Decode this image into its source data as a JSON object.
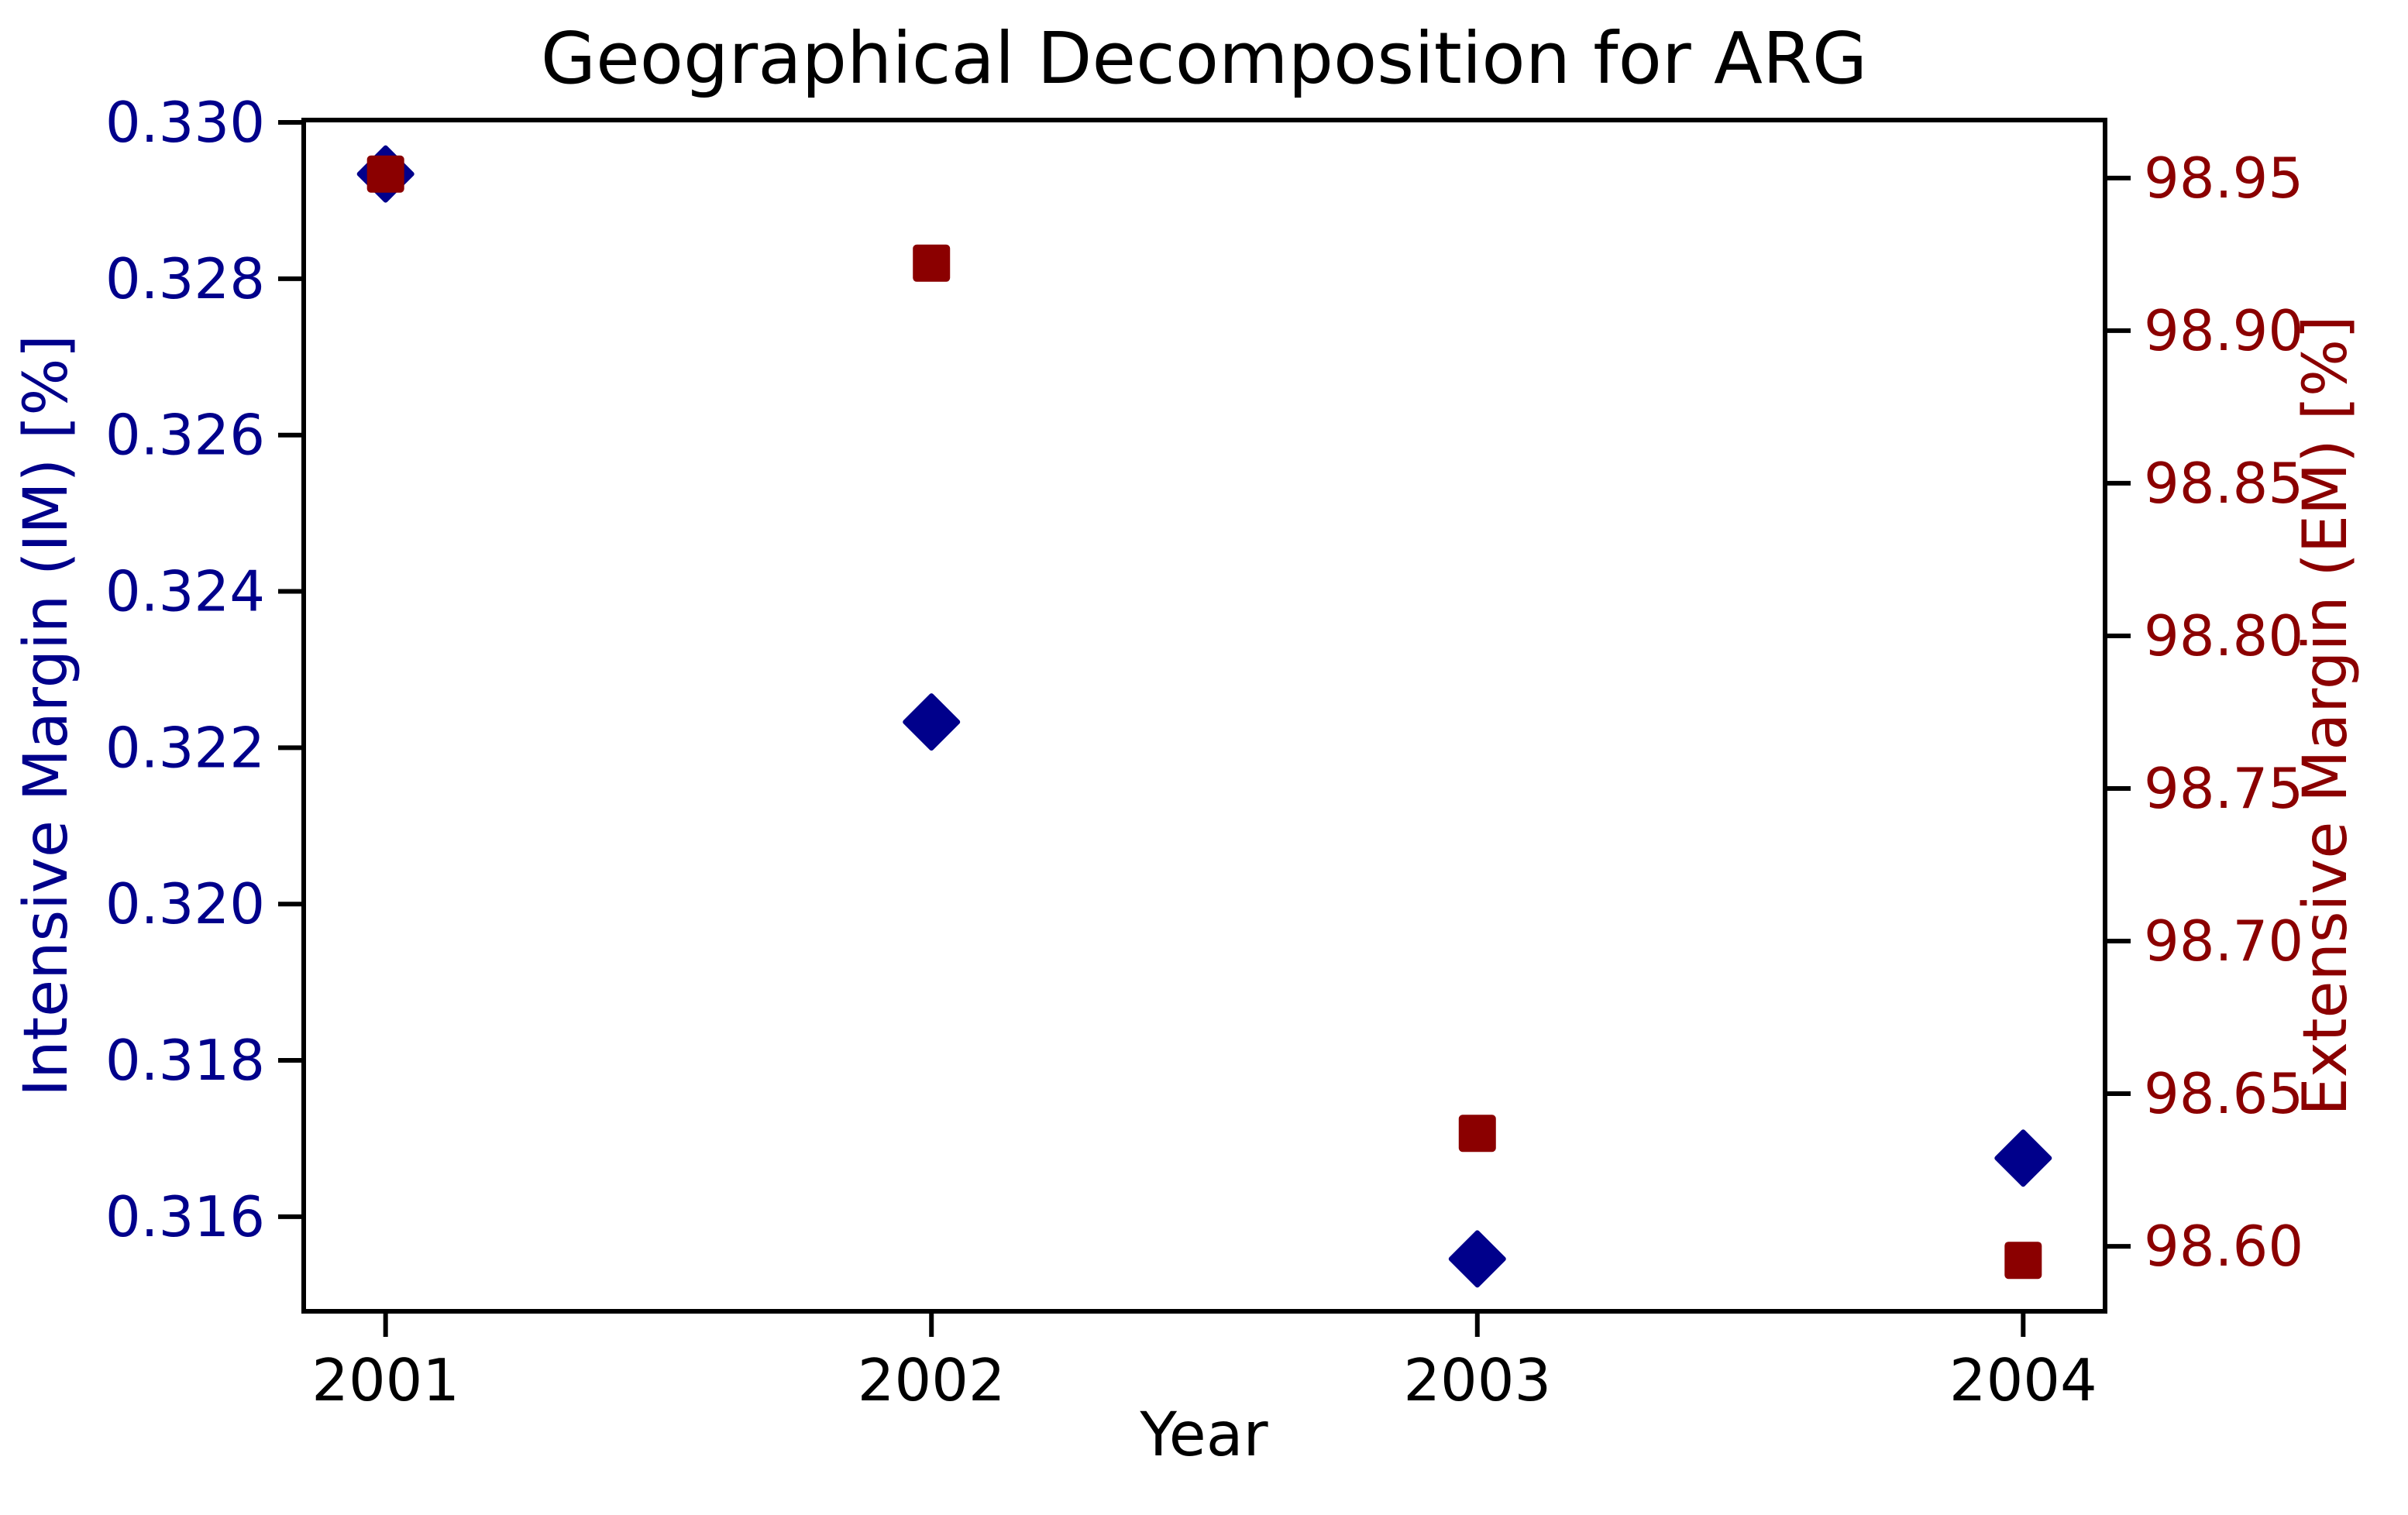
{
  "title": "Geographical Decomposition for ARG",
  "colors": {
    "im_accent": "#00008B",
    "em_accent": "#8B0000",
    "axis": "#000000",
    "background": "#ffffff"
  },
  "chart_data": {
    "type": "scatter",
    "title": "Geographical Decomposition for ARG",
    "xlabel": "Year",
    "ylabel_left": "Intensive Margin (IM) [%]",
    "ylabel_right": "Extensive Margin (EM) [%]",
    "x": [
      2001,
      2002,
      2003,
      2004
    ],
    "series": [
      {
        "name": "Intensive Margin (IM) [%]",
        "axis": "left",
        "marker": "diamond",
        "color": "#00008B",
        "values": [
          0.32934,
          0.32233,
          0.31546,
          0.31675
        ]
      },
      {
        "name": "Extensive Margin (EM) [%]",
        "axis": "right",
        "marker": "square",
        "color": "#8B0000",
        "values": [
          98.9513,
          98.9221,
          98.637,
          98.5954
        ]
      }
    ],
    "xlim": [
      2000.85,
      2004.15
    ],
    "ylim_left": [
      0.31479,
      0.33003
    ],
    "ylim_right": [
      98.5787,
      98.969
    ],
    "xticks": {
      "values": [
        2001,
        2002,
        2003,
        2004
      ],
      "labels": [
        "2001",
        "2002",
        "2003",
        "2004"
      ]
    },
    "yticks_left": {
      "values": [
        0.316,
        0.318,
        0.32,
        0.322,
        0.324,
        0.326,
        0.328,
        0.33
      ],
      "labels": [
        "0.316",
        "0.318",
        "0.320",
        "0.322",
        "0.324",
        "0.326",
        "0.328",
        "0.330"
      ]
    },
    "yticks_right": {
      "values": [
        98.6,
        98.65,
        98.7,
        98.75,
        98.8,
        98.85,
        98.9,
        98.95
      ],
      "labels": [
        "98.60",
        "98.65",
        "98.70",
        "98.75",
        "98.80",
        "98.85",
        "98.90",
        "98.95"
      ]
    },
    "grid": false,
    "legend": null
  }
}
